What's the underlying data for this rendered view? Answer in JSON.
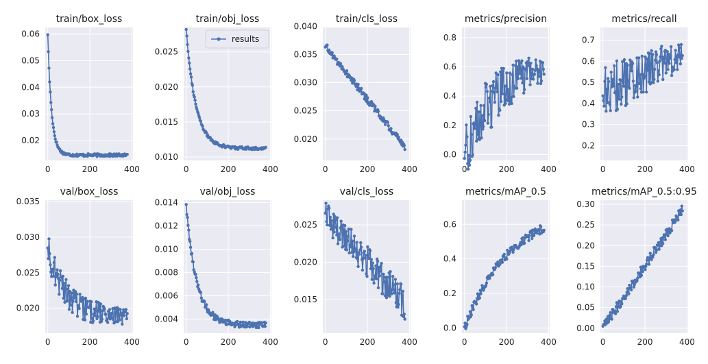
{
  "figure": {
    "legend_label": "results"
  },
  "style": {
    "background": "#ffffff",
    "panel_bg": "#eaeaf2",
    "grid_color": "#ffffff",
    "series_color": "#4c72b0"
  },
  "chart_data": [
    {
      "type": "line",
      "title": "train/box_loss",
      "xlim": [
        -12,
        405
      ],
      "ylim": [
        0.0125,
        0.0625
      ],
      "xticks": [
        0,
        200,
        400
      ],
      "yticks": [
        0.02,
        0.03,
        0.04,
        0.05,
        0.06
      ],
      "ytick_labels": [
        "0.02",
        "0.03",
        "0.04",
        "0.05",
        "0.06"
      ],
      "grid": true,
      "legend": false,
      "trend": {
        "kind": "decay",
        "start": 0.06,
        "end": 0.0145,
        "rate": 0.055,
        "noise": 0.0005,
        "noise_growth": 0
      }
    },
    {
      "type": "line",
      "title": "train/obj_loss",
      "xlim": [
        -12,
        405
      ],
      "ylim": [
        0.0095,
        0.0285
      ],
      "xticks": [
        0,
        200,
        400
      ],
      "yticks": [
        0.01,
        0.015,
        0.02,
        0.025
      ],
      "ytick_labels": [
        "0.010",
        "0.015",
        "0.020",
        "0.025"
      ],
      "grid": true,
      "legend": true,
      "legend_position": "upper-right",
      "trend": {
        "kind": "decay",
        "start": 0.0283,
        "end": 0.0112,
        "rate": 0.022,
        "noise": 0.0002,
        "noise_growth": 0
      }
    },
    {
      "type": "line",
      "title": "train/cls_loss",
      "xlim": [
        -12,
        405
      ],
      "ylim": [
        0.0162,
        0.0398
      ],
      "xticks": [
        0,
        200,
        400
      ],
      "yticks": [
        0.02,
        0.025,
        0.03,
        0.035,
        0.04
      ],
      "ytick_labels": [
        "0.020",
        "0.025",
        "0.030",
        "0.035",
        "0.040"
      ],
      "grid": true,
      "legend": false,
      "trend": {
        "kind": "linear",
        "start": 0.0365,
        "end": 0.0185,
        "noise": 0.0006,
        "noise_growth": 0
      }
    },
    {
      "type": "line",
      "title": "metrics/precision",
      "xlim": [
        -12,
        405
      ],
      "ylim": [
        -0.04,
        0.87
      ],
      "xticks": [
        0,
        200,
        400
      ],
      "yticks": [
        0.0,
        0.2,
        0.4,
        0.6,
        0.8
      ],
      "ytick_labels": [
        "0.0",
        "0.2",
        "0.4",
        "0.6",
        "0.8"
      ],
      "grid": true,
      "legend": false,
      "trend": {
        "kind": "rise",
        "start": 0.02,
        "end": 0.65,
        "rate": 0.006,
        "noise": 0.22,
        "noise_growth": -0.6
      }
    },
    {
      "type": "line",
      "title": "metrics/recall",
      "xlim": [
        -12,
        405
      ],
      "ylim": [
        0.13,
        0.76
      ],
      "xticks": [
        0,
        200,
        400
      ],
      "yticks": [
        0.2,
        0.3,
        0.4,
        0.5,
        0.6,
        0.7
      ],
      "ytick_labels": [
        "0.2",
        "0.3",
        "0.4",
        "0.5",
        "0.6",
        "0.7"
      ],
      "grid": true,
      "legend": false,
      "trend": {
        "kind": "linear",
        "start": 0.45,
        "end": 0.63,
        "noise": 0.13,
        "noise_growth": -0.4
      }
    },
    {
      "type": "line",
      "title": "val/box_loss",
      "xlim": [
        -12,
        405
      ],
      "ylim": [
        0.0165,
        0.0352
      ],
      "xticks": [
        0,
        200,
        400
      ],
      "yticks": [
        0.02,
        0.025,
        0.03,
        0.035
      ],
      "ytick_labels": [
        "0.020",
        "0.025",
        "0.030",
        "0.035"
      ],
      "grid": true,
      "legend": false,
      "trend": {
        "kind": "decay",
        "start": 0.0285,
        "end": 0.0188,
        "rate": 0.012,
        "noise": 0.0022,
        "noise_growth": -0.5
      }
    },
    {
      "type": "line",
      "title": "val/obj_loss",
      "xlim": [
        -12,
        405
      ],
      "ylim": [
        0.0028,
        0.0142
      ],
      "xticks": [
        0,
        200,
        400
      ],
      "yticks": [
        0.004,
        0.006,
        0.008,
        0.01,
        0.012,
        0.014
      ],
      "ytick_labels": [
        "0.004",
        "0.006",
        "0.008",
        "0.010",
        "0.012",
        "0.014"
      ],
      "grid": true,
      "legend": false,
      "trend": {
        "kind": "decay",
        "start": 0.0138,
        "end": 0.0035,
        "rate": 0.02,
        "noise": 0.0003,
        "noise_growth": -0.2
      }
    },
    {
      "type": "line",
      "title": "val/cls_loss",
      "xlim": [
        -12,
        405
      ],
      "ylim": [
        0.0105,
        0.0283
      ],
      "xticks": [
        0,
        200,
        400
      ],
      "yticks": [
        0.015,
        0.02,
        0.025
      ],
      "ytick_labels": [
        "0.015",
        "0.020",
        "0.025"
      ],
      "grid": true,
      "legend": false,
      "trend": {
        "kind": "linear",
        "start": 0.0262,
        "end": 0.0145,
        "noise": 0.0018,
        "noise_growth": 0.3
      }
    },
    {
      "type": "line",
      "title": "metrics/mAP_0.5",
      "xlim": [
        -12,
        405
      ],
      "ylim": [
        -0.03,
        0.74
      ],
      "xticks": [
        0,
        200,
        400
      ],
      "yticks": [
        0.0,
        0.2,
        0.4,
        0.6
      ],
      "ytick_labels": [
        "0.0",
        "0.2",
        "0.4",
        "0.6"
      ],
      "grid": true,
      "legend": false,
      "trend": {
        "kind": "rise",
        "start": 0.0,
        "end": 0.71,
        "rate": 0.0045,
        "noise": 0.025,
        "noise_growth": 0
      }
    },
    {
      "type": "line",
      "title": "metrics/mAP_0.5:0.95",
      "xlim": [
        -12,
        405
      ],
      "ylim": [
        -0.012,
        0.31
      ],
      "xticks": [
        0,
        200,
        400
      ],
      "yticks": [
        0.0,
        0.05,
        0.1,
        0.15,
        0.2,
        0.25,
        0.3
      ],
      "ytick_labels": [
        "0.00",
        "0.05",
        "0.10",
        "0.15",
        "0.20",
        "0.25",
        "0.30"
      ],
      "grid": true,
      "legend": false,
      "trend": {
        "kind": "linear",
        "start": 0.0,
        "end": 0.288,
        "noise": 0.012,
        "noise_growth": 0
      }
    }
  ]
}
